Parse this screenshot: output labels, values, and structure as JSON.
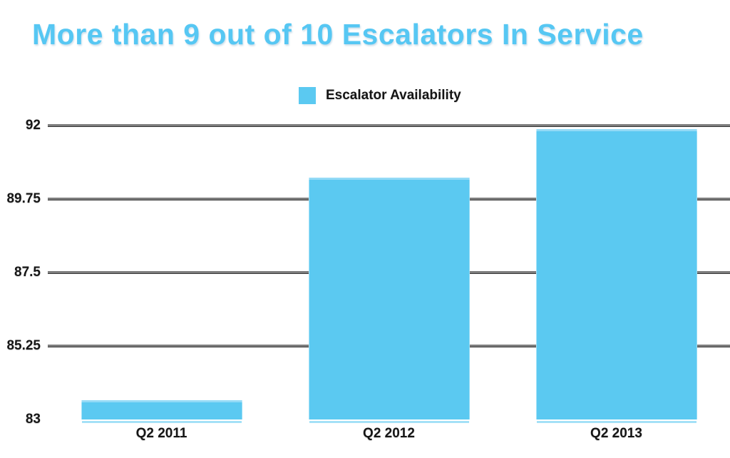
{
  "title": {
    "text": "More than 9 out of 10 Escalators In Service",
    "color": "#56C7F3"
  },
  "legend": {
    "label": "Escalator Availability",
    "swatch_color": "#5BC9F1"
  },
  "chart_data": {
    "type": "bar",
    "title": "More than 9 out of 10 Escalators In Service",
    "categories": [
      "Q2 2011",
      "Q2 2012",
      "Q2 2013"
    ],
    "series": [
      {
        "name": "Escalator Availability",
        "values": [
          83.6,
          90.4,
          91.9
        ]
      }
    ],
    "ylim": [
      83,
      92
    ],
    "yticks": [
      83,
      85.25,
      87.5,
      89.75,
      92
    ],
    "ytick_labels": [
      "83",
      "85.25",
      "87.5",
      "89.75",
      "92"
    ],
    "grid": "horizontal-only, no baseline gridline at 83",
    "legend_position": "top-center",
    "xlabel": "",
    "ylabel": "",
    "bar_color": "#5BC9F1",
    "gridline_color": "#7D7D7D",
    "text_color": "#161616"
  }
}
